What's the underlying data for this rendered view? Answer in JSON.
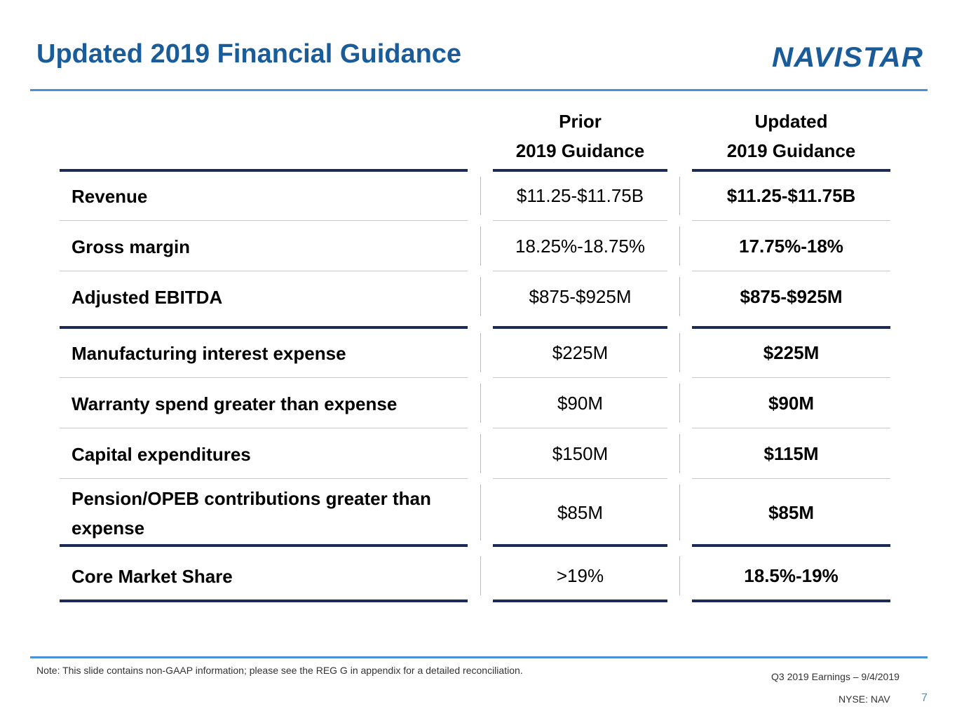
{
  "slide": {
    "title": "Updated 2019 Financial Guidance",
    "logo_text": "NAVISTAR",
    "brand_color": "#1a5c99",
    "rule_color": "#4a90d9",
    "table_rule_color": "#1b2a57"
  },
  "table": {
    "headers": {
      "prior": [
        "Prior",
        "2019 Guidance"
      ],
      "updated": [
        "Updated",
        "2019 Guidance"
      ]
    },
    "rows": [
      {
        "label": "Revenue",
        "prior": "$11.25-$11.75B",
        "updated": "$11.25-$11.75B"
      },
      {
        "label": "Gross margin",
        "prior": "18.25%-18.75%",
        "updated": "17.75%-18%"
      },
      {
        "label": "Adjusted EBITDA",
        "prior": "$875-$925M",
        "updated": "$875-$925M"
      },
      {
        "label": "Manufacturing interest expense",
        "prior": "$225M",
        "updated": "$225M"
      },
      {
        "label": "Warranty spend greater than expense",
        "prior": "$90M",
        "updated": "$90M"
      },
      {
        "label": "Capital expenditures",
        "prior": "$150M",
        "updated": "$115M"
      },
      {
        "label": "Pension/OPEB contributions greater than expense",
        "prior": "$85M",
        "updated": "$85M"
      },
      {
        "label": "Core Market Share",
        "prior": ">19%",
        "updated": "18.5%-19%"
      }
    ]
  },
  "footer": {
    "note": "Note: This slide contains non-GAAP information; please see the REG G in appendix for a detailed reconciliation.",
    "event": "Q3 2019 Earnings – 9/4/2019",
    "ticker": "NYSE: NAV",
    "page_number": "7"
  }
}
